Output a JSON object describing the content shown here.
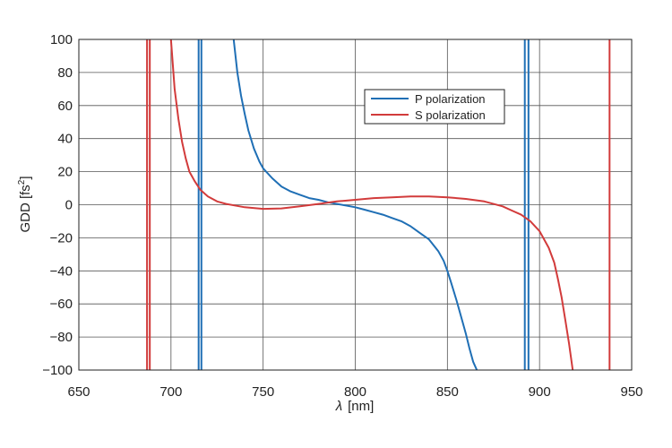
{
  "chart_data": {
    "type": "line",
    "title": "",
    "xlabel_symbol": "λ",
    "xlabel_unit": "[nm]",
    "ylabel_text": "GDD [fs",
    "ylabel_sup": "2",
    "ylabel_close": "]",
    "xlim": [
      650,
      950
    ],
    "ylim": [
      -100,
      100
    ],
    "xticks": [
      650,
      700,
      750,
      800,
      850,
      900,
      950
    ],
    "xtick_labels": [
      "650",
      "700",
      "750",
      "800",
      "850",
      "900",
      "950"
    ],
    "yticks": [
      100,
      80,
      60,
      40,
      20,
      0,
      -20,
      -40,
      -60,
      -80,
      -100
    ],
    "ytick_labels": [
      "100",
      "80",
      "60",
      "40",
      "20",
      "0",
      "−20",
      "−40",
      "−60",
      "−80",
      "−100"
    ],
    "grid": true,
    "legend_position": "upper-right",
    "series": [
      {
        "name": "P polarization",
        "color": "#1f6fb5",
        "x": [
          734,
          736,
          738,
          740,
          742,
          745,
          748,
          750,
          755,
          760,
          765,
          770,
          775,
          780,
          785,
          790,
          795,
          800,
          805,
          810,
          815,
          820,
          825,
          830,
          835,
          840,
          845,
          848,
          850,
          852,
          855,
          858,
          860,
          862,
          864,
          866
        ],
        "y": [
          100,
          80,
          66,
          55,
          45,
          34,
          26,
          22,
          16,
          11,
          8,
          6,
          4,
          3,
          1.5,
          0.5,
          -0.5,
          -1.5,
          -3,
          -4.5,
          -6,
          -8,
          -10,
          -13,
          -17,
          -21,
          -28,
          -34,
          -40,
          -47,
          -58,
          -70,
          -78,
          -87,
          -95,
          -100
        ]
      },
      {
        "name": "S polarization",
        "color": "#d23b3b",
        "x": [
          700,
          702,
          704,
          706,
          708,
          710,
          713,
          716,
          720,
          725,
          730,
          740,
          750,
          760,
          770,
          780,
          790,
          800,
          810,
          820,
          830,
          840,
          850,
          860,
          870,
          880,
          885,
          890,
          895,
          900,
          905,
          908,
          910,
          912,
          914,
          916,
          918
        ],
        "y": [
          100,
          70,
          52,
          38,
          28,
          20,
          14,
          9,
          5,
          2,
          0.5,
          -1.5,
          -2.5,
          -2.2,
          -1,
          0.5,
          2,
          3,
          4,
          4.5,
          5,
          5,
          4.5,
          3.5,
          2,
          -1,
          -3.5,
          -6,
          -10,
          -16,
          -26,
          -35,
          -45,
          -56,
          -70,
          -84,
          -100
        ]
      }
    ],
    "vertical_lines": [
      {
        "series": "S polarization",
        "x": 687,
        "color": "#d23b3b"
      },
      {
        "series": "S polarization",
        "x": 688.5,
        "color": "#d23b3b"
      },
      {
        "series": "P polarization",
        "x": 715,
        "color": "#1f6fb5"
      },
      {
        "series": "P polarization",
        "x": 716.5,
        "color": "#1f6fb5"
      },
      {
        "series": "P polarization",
        "x": 892,
        "color": "#1f6fb5"
      },
      {
        "series": "P polarization",
        "x": 894,
        "color": "#1f6fb5"
      },
      {
        "series": "S polarization",
        "x": 938,
        "color": "#d23b3b"
      }
    ]
  }
}
